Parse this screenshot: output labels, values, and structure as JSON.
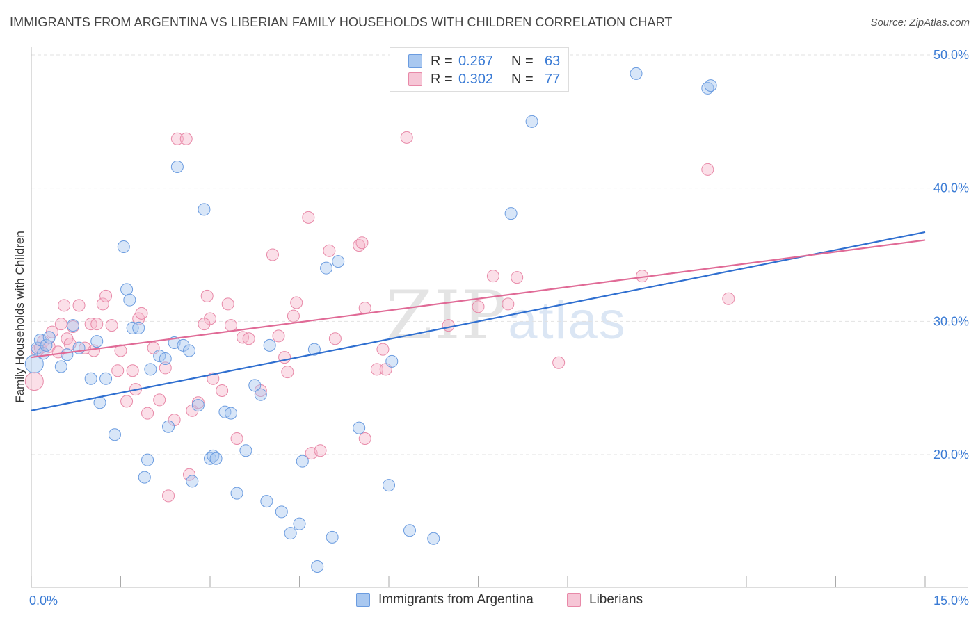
{
  "header": {
    "title": "IMMIGRANTS FROM ARGENTINA VS LIBERIAN FAMILY HOUSEHOLDS WITH CHILDREN CORRELATION CHART",
    "source": "Source: ZipAtlas.com"
  },
  "watermark": {
    "zip": "ZIP",
    "atlas": "atlas"
  },
  "legend": {
    "rows": [
      {
        "r_label": "R =",
        "r_value": "0.267",
        "n_label": "N =",
        "n_value": "63"
      },
      {
        "r_label": "R =",
        "r_value": "0.302",
        "n_label": "N =",
        "n_value": "77"
      }
    ]
  },
  "bottom_legend": {
    "items": [
      {
        "label": "Immigrants from Argentina"
      },
      {
        "label": "Liberians"
      }
    ]
  },
  "colors": {
    "blue_fill": "#a9c8f0",
    "blue_stroke": "#6b9ce0",
    "blue_line": "#2f6fd0",
    "pink_fill": "#f6b9cc",
    "pink_stroke": "#e889a8",
    "pink_line": "#e06a96",
    "axis_text": "#3a7bd5"
  },
  "chart_data": {
    "type": "scatter",
    "title": "IMMIGRANTS FROM ARGENTINA VS LIBERIAN FAMILY HOUSEHOLDS WITH CHILDREN CORRELATION CHART",
    "xlabel": "",
    "ylabel": "Family Households with Children",
    "xlim": [
      0,
      15
    ],
    "ylim": [
      11,
      51.5
    ],
    "x_tick_labels": [
      "0.0%",
      "15.0%"
    ],
    "y_ticks": [
      20,
      30,
      40,
      50
    ],
    "y_tick_labels": [
      "20.0%",
      "30.0%",
      "40.0%",
      "50.0%"
    ],
    "grid": true,
    "legend_position": "top-center",
    "series": [
      {
        "name": "Immigrants from Argentina",
        "R": 0.267,
        "N": 63,
        "trend": {
          "x": [
            0,
            15
          ],
          "y": [
            23.3,
            36.7
          ]
        },
        "points": [
          [
            0.05,
            26.8
          ],
          [
            0.1,
            28.0
          ],
          [
            0.15,
            28.6
          ],
          [
            0.2,
            27.6
          ],
          [
            0.25,
            28.2
          ],
          [
            0.3,
            28.8
          ],
          [
            0.5,
            26.6
          ],
          [
            0.6,
            27.5
          ],
          [
            0.7,
            29.7
          ],
          [
            0.8,
            28.0
          ],
          [
            1.0,
            25.7
          ],
          [
            1.1,
            28.5
          ],
          [
            1.15,
            23.9
          ],
          [
            1.25,
            25.7
          ],
          [
            1.4,
            21.5
          ],
          [
            1.55,
            35.6
          ],
          [
            1.6,
            32.4
          ],
          [
            1.65,
            31.6
          ],
          [
            1.7,
            29.5
          ],
          [
            1.8,
            29.5
          ],
          [
            1.9,
            18.3
          ],
          [
            1.95,
            19.6
          ],
          [
            2.0,
            26.4
          ],
          [
            2.15,
            27.4
          ],
          [
            2.25,
            27.2
          ],
          [
            2.3,
            22.1
          ],
          [
            2.4,
            28.4
          ],
          [
            2.45,
            41.6
          ],
          [
            2.55,
            28.2
          ],
          [
            2.65,
            27.8
          ],
          [
            2.7,
            18.0
          ],
          [
            2.8,
            23.7
          ],
          [
            2.9,
            38.4
          ],
          [
            3.0,
            19.7
          ],
          [
            3.05,
            19.9
          ],
          [
            3.1,
            19.7
          ],
          [
            3.25,
            23.2
          ],
          [
            3.35,
            23.1
          ],
          [
            3.45,
            17.1
          ],
          [
            3.6,
            20.3
          ],
          [
            3.75,
            25.2
          ],
          [
            3.85,
            24.5
          ],
          [
            3.95,
            16.5
          ],
          [
            4.0,
            28.2
          ],
          [
            4.2,
            15.7
          ],
          [
            4.35,
            14.1
          ],
          [
            4.5,
            14.8
          ],
          [
            4.55,
            19.5
          ],
          [
            4.75,
            27.9
          ],
          [
            4.8,
            11.6
          ],
          [
            4.95,
            34.0
          ],
          [
            5.05,
            13.8
          ],
          [
            5.15,
            34.5
          ],
          [
            5.5,
            22.0
          ],
          [
            6.0,
            17.7
          ],
          [
            6.05,
            27.0
          ],
          [
            6.35,
            14.3
          ],
          [
            6.75,
            13.7
          ],
          [
            8.05,
            38.1
          ],
          [
            8.4,
            45.0
          ],
          [
            10.15,
            48.6
          ],
          [
            11.35,
            47.5
          ],
          [
            11.4,
            47.7
          ]
        ]
      },
      {
        "name": "Liberians",
        "R": 0.302,
        "N": 77,
        "trend": {
          "x": [
            0,
            15
          ],
          "y": [
            27.3,
            36.1
          ]
        },
        "points": [
          [
            0.05,
            25.5
          ],
          [
            0.1,
            27.8
          ],
          [
            0.15,
            28.0
          ],
          [
            0.2,
            28.5
          ],
          [
            0.3,
            28.1
          ],
          [
            0.35,
            29.2
          ],
          [
            0.45,
            27.7
          ],
          [
            0.5,
            29.8
          ],
          [
            0.55,
            31.2
          ],
          [
            0.6,
            28.7
          ],
          [
            0.65,
            28.3
          ],
          [
            0.7,
            29.6
          ],
          [
            0.8,
            31.2
          ],
          [
            0.9,
            28.0
          ],
          [
            1.0,
            29.8
          ],
          [
            1.05,
            27.8
          ],
          [
            1.1,
            29.8
          ],
          [
            1.2,
            31.3
          ],
          [
            1.25,
            31.9
          ],
          [
            1.35,
            29.7
          ],
          [
            1.5,
            27.8
          ],
          [
            1.6,
            24.0
          ],
          [
            1.7,
            26.3
          ],
          [
            1.75,
            24.9
          ],
          [
            1.8,
            30.2
          ],
          [
            1.85,
            30.6
          ],
          [
            1.95,
            23.1
          ],
          [
            2.05,
            28.0
          ],
          [
            2.15,
            24.1
          ],
          [
            2.25,
            26.5
          ],
          [
            2.3,
            16.9
          ],
          [
            2.4,
            22.6
          ],
          [
            2.45,
            43.7
          ],
          [
            2.6,
            43.7
          ],
          [
            2.65,
            18.5
          ],
          [
            2.7,
            23.3
          ],
          [
            2.8,
            23.9
          ],
          [
            2.95,
            31.9
          ],
          [
            3.0,
            30.2
          ],
          [
            3.05,
            25.7
          ],
          [
            3.2,
            24.8
          ],
          [
            3.3,
            31.3
          ],
          [
            3.35,
            29.7
          ],
          [
            3.45,
            21.2
          ],
          [
            3.55,
            28.8
          ],
          [
            3.65,
            28.7
          ],
          [
            3.85,
            24.8
          ],
          [
            4.05,
            35.0
          ],
          [
            4.15,
            28.9
          ],
          [
            4.25,
            27.3
          ],
          [
            4.3,
            26.2
          ],
          [
            4.4,
            30.4
          ],
          [
            4.45,
            31.4
          ],
          [
            4.65,
            37.8
          ],
          [
            4.7,
            20.1
          ],
          [
            4.85,
            20.3
          ],
          [
            5.0,
            35.3
          ],
          [
            5.1,
            28.7
          ],
          [
            5.5,
            35.7
          ],
          [
            5.55,
            35.9
          ],
          [
            5.6,
            21.2
          ],
          [
            5.8,
            26.4
          ],
          [
            5.9,
            27.9
          ],
          [
            5.95,
            26.4
          ],
          [
            6.3,
            43.8
          ],
          [
            7.0,
            29.7
          ],
          [
            7.5,
            31.1
          ],
          [
            7.75,
            33.4
          ],
          [
            8.0,
            31.3
          ],
          [
            8.15,
            33.3
          ],
          [
            8.85,
            26.9
          ],
          [
            10.25,
            33.4
          ],
          [
            11.35,
            41.4
          ],
          [
            11.7,
            31.7
          ],
          [
            5.6,
            31.0
          ],
          [
            2.9,
            29.8
          ],
          [
            1.45,
            26.3
          ]
        ]
      }
    ]
  }
}
